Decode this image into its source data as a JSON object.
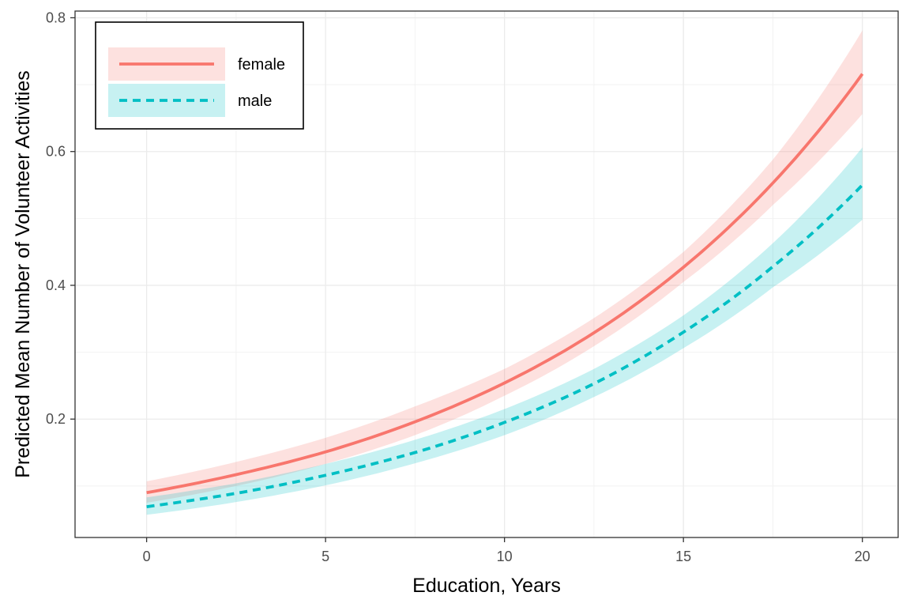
{
  "chart_data": {
    "type": "line",
    "xlabel": "Education, Years",
    "ylabel": "Predicted Mean Number of Volunteer Activities",
    "xlim": [
      -2,
      21
    ],
    "ylim": [
      0.023,
      0.81
    ],
    "x_ticks": [
      0,
      5,
      10,
      15,
      20
    ],
    "x_tick_labels": [
      "0",
      "5",
      "10",
      "15",
      "20"
    ],
    "y_ticks": [
      0.2,
      0.4,
      0.6,
      0.8
    ],
    "y_tick_labels": [
      "0.2",
      "0.4",
      "0.6",
      "0.8"
    ],
    "grid": true,
    "legend_position": "top-left",
    "x": [
      0,
      2.5,
      5,
      7.5,
      10,
      12.5,
      15,
      17.5,
      20
    ],
    "series": [
      {
        "name": "female",
        "line_style": "solid",
        "color": "#F8766D",
        "band_color": "#F8766D",
        "values": [
          0.09,
          0.117,
          0.151,
          0.196,
          0.254,
          0.329,
          0.427,
          0.553,
          0.716
        ],
        "lower": [
          0.075,
          0.1,
          0.133,
          0.176,
          0.235,
          0.309,
          0.405,
          0.52,
          0.656
        ],
        "upper": [
          0.107,
          0.136,
          0.172,
          0.219,
          0.275,
          0.351,
          0.45,
          0.588,
          0.781
        ]
      },
      {
        "name": "male",
        "line_style": "dashed",
        "color": "#00BFC4",
        "band_color": "#00BFC4",
        "values": [
          0.069,
          0.089,
          0.116,
          0.15,
          0.195,
          0.253,
          0.33,
          0.428,
          0.55
        ],
        "lower": [
          0.057,
          0.076,
          0.101,
          0.134,
          0.176,
          0.233,
          0.306,
          0.397,
          0.498
        ],
        "upper": [
          0.083,
          0.104,
          0.133,
          0.169,
          0.215,
          0.275,
          0.355,
          0.463,
          0.606
        ]
      }
    ]
  }
}
